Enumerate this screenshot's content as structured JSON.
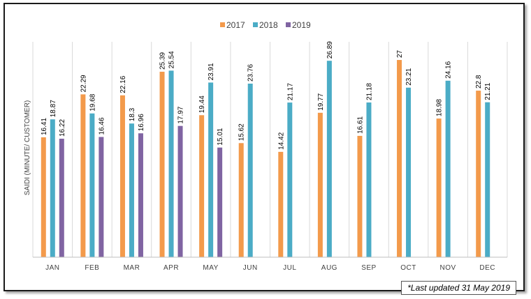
{
  "chart_data": {
    "type": "bar",
    "title": "",
    "xlabel": "",
    "ylabel": "SAIDI (MINUTE/ CUSTOMER)",
    "ylim": [
      0,
      30
    ],
    "categories": [
      "JAN",
      "FEB",
      "MAR",
      "APR",
      "MAY",
      "JUN",
      "JUL",
      "AUG",
      "SEP",
      "OCT",
      "NOV",
      "DEC"
    ],
    "series": [
      {
        "name": "2017",
        "color": "#F39A4B",
        "values": [
          16.41,
          22.29,
          22.16,
          25.39,
          19.44,
          15.62,
          14.42,
          19.77,
          16.61,
          27,
          18.98,
          22.8
        ],
        "labels": [
          "16.41",
          "22.29",
          "22.16",
          "25.39",
          "19.44",
          "15.62",
          "14.42",
          "19.77",
          "16.61",
          "27",
          "18.98",
          "22.8"
        ]
      },
      {
        "name": "2018",
        "color": "#4BACC6",
        "values": [
          18.87,
          19.68,
          18.3,
          25.54,
          23.91,
          23.76,
          21.17,
          26.89,
          21.18,
          23.21,
          24.16,
          21.21
        ],
        "labels": [
          "18.87",
          "19.68",
          "18.3",
          "25.54",
          "23.91",
          "23.76",
          "21.17",
          "26.89",
          "21.18",
          "23.21",
          "24.16",
          "21.21"
        ]
      },
      {
        "name": "2019",
        "color": "#8064A2",
        "values": [
          16.22,
          16.46,
          16.96,
          17.97,
          15.01,
          null,
          null,
          null,
          null,
          null,
          null,
          null
        ],
        "labels": [
          "16.22",
          "16.46",
          "16.96",
          "17.97",
          "15.01",
          null,
          null,
          null,
          null,
          null,
          null,
          null
        ]
      }
    ],
    "legend_position": "top-center",
    "grid": "vertical separators",
    "annotation": "*Last updated 31 May 2019"
  }
}
